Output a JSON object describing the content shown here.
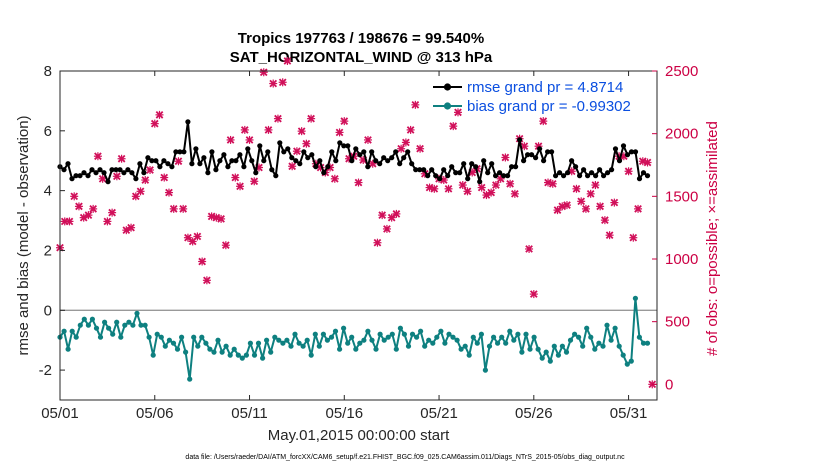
{
  "chart_data": {
    "type": "line",
    "title_line1": "Tropics 197763 / 198676 = 99.540%",
    "title_line2": "SAT_HORIZONTAL_WIND @ 313 hPa",
    "xlabel": "May.01,2015 00:00:00 start",
    "ylabel_left": "rmse and bias (model - observation)",
    "ylabel_right": "# of obs: o=possible; ×=assimilated",
    "ylim_left": [
      -3,
      8
    ],
    "yticks_left": [
      "-2",
      "0",
      "2",
      "4",
      "6",
      "8"
    ],
    "ylim_right": [
      -125,
      2500
    ],
    "yticks_right": [
      "0",
      "500",
      "1000",
      "1500",
      "2000",
      "2500"
    ],
    "xlim": [
      0,
      31.5
    ],
    "xticks": [
      {
        "day": 0,
        "label": "05/01"
      },
      {
        "day": 5,
        "label": "05/06"
      },
      {
        "day": 10,
        "label": "05/11"
      },
      {
        "day": 15,
        "label": "05/16"
      },
      {
        "day": 20,
        "label": "05/21"
      },
      {
        "day": 25,
        "label": "05/26"
      },
      {
        "day": 30,
        "label": "05/31"
      }
    ],
    "series": [
      {
        "name": "rmse grand pr = 4.8714",
        "color": "#000000",
        "values": [
          4.8,
          4.7,
          4.9,
          4.4,
          4.5,
          4.5,
          4.6,
          4.5,
          4.7,
          4.6,
          4.7,
          4.6,
          4.3,
          4.7,
          4.7,
          4.7,
          4.6,
          4.7,
          4.6,
          4.4,
          4.9,
          4.6,
          5.1,
          5.0,
          5.0,
          4.8,
          5.0,
          4.9,
          4.8,
          5.3,
          5.3,
          5.3,
          6.3,
          4.9,
          5.4,
          4.9,
          5.1,
          4.6,
          5.3,
          4.7,
          5.0,
          5.2,
          4.8,
          5.0,
          5.0,
          5.2,
          4.8,
          5.4,
          5.0,
          4.6,
          5.5,
          5.0,
          5.3,
          4.7,
          4.5,
          5.6,
          5.3,
          5.4,
          5.1,
          5.0,
          4.9,
          5.3,
          5.1,
          5.2,
          4.8,
          5.0,
          4.6,
          4.8,
          5.3,
          5.0,
          5.6,
          5.5,
          5.5,
          5.0,
          5.4,
          5.2,
          5.3,
          4.8,
          5.3,
          5.0,
          4.9,
          5.1,
          5.0,
          5.1,
          5.3,
          4.9,
          5.1,
          5.3,
          4.9,
          4.7,
          4.7,
          4.7,
          4.5,
          4.7,
          4.5,
          4.4,
          4.7,
          4.5,
          4.8,
          4.6,
          4.6,
          4.9,
          4.4,
          4.9,
          4.8,
          4.3,
          5.0,
          4.6,
          4.9,
          4.5,
          4.6,
          4.5,
          4.5,
          4.8,
          4.8,
          5.7,
          5.0,
          5.2,
          5.2,
          5.1,
          5.4,
          5.0,
          5.3,
          5.3,
          4.5,
          4.6,
          4.5,
          4.6,
          5.0,
          4.8,
          4.5,
          4.7,
          4.5,
          4.6,
          4.5,
          4.7,
          4.5,
          4.6,
          4.7,
          5.4,
          5.0,
          5.5,
          5.2,
          5.3,
          5.3,
          4.4,
          4.6,
          4.5
        ]
      },
      {
        "name": "bias grand pr = -0.99302",
        "color": "#0e8080",
        "values": [
          -0.9,
          -0.7,
          -1.3,
          -0.7,
          -0.9,
          -0.5,
          -0.3,
          -0.5,
          -0.3,
          -0.6,
          -0.9,
          -0.4,
          -0.6,
          -0.8,
          -0.4,
          -0.9,
          -0.5,
          -0.4,
          -0.5,
          -0.1,
          -0.5,
          -0.5,
          -0.9,
          -1.5,
          -0.8,
          -0.9,
          -1.2,
          -1.0,
          -1.1,
          -1.3,
          -0.9,
          -1.4,
          -2.3,
          -0.9,
          -1.2,
          -0.9,
          -1.1,
          -1.3,
          -1.4,
          -1.0,
          -1.4,
          -1.2,
          -1.5,
          -1.3,
          -1.5,
          -1.6,
          -1.5,
          -1.1,
          -1.5,
          -1.1,
          -1.6,
          -1.0,
          -1.4,
          -0.9,
          -1.0,
          -1.1,
          -1.0,
          -1.2,
          -0.8,
          -1.1,
          -1.2,
          -1.0,
          -1.5,
          -0.8,
          -1.2,
          -0.8,
          -1.0,
          -0.9,
          -0.7,
          -1.3,
          -0.6,
          -1.1,
          -0.9,
          -1.3,
          -1.1,
          -1.0,
          -0.7,
          -1.0,
          -1.3,
          -0.8,
          -1.0,
          -0.9,
          -0.8,
          -1.3,
          -0.6,
          -0.8,
          -1.2,
          -0.8,
          -0.9,
          -0.7,
          -1.2,
          -1.0,
          -1.1,
          -0.9,
          -0.7,
          -1.1,
          -0.8,
          -0.9,
          -1.0,
          -1.3,
          -1.2,
          -1.5,
          -0.9,
          -1.1,
          -0.8,
          -2.0,
          -1.2,
          -0.9,
          -1.1,
          -0.9,
          -1.1,
          -0.7,
          -1.0,
          -0.8,
          -1.4,
          -0.8,
          -1.3,
          -0.9,
          -1.3,
          -1.6,
          -1.4,
          -1.7,
          -1.2,
          -1.5,
          -1.2,
          -1.4,
          -1.0,
          -0.8,
          -0.9,
          -1.2,
          -0.6,
          -0.9,
          -1.3,
          -1.1,
          -1.2,
          -0.5,
          -1.0,
          -0.6,
          -1.2,
          -1.5,
          -1.8,
          -1.7,
          0.4,
          -0.9,
          -1.1,
          -1.1
        ]
      }
    ],
    "obs_assimilated": {
      "name": "# assimilated (×)",
      "color": "#d1105a",
      "points": [
        [
          0.0,
          1090
        ],
        [
          0.25,
          1300
        ],
        [
          0.5,
          1300
        ],
        [
          0.75,
          1500
        ],
        [
          1.0,
          1420
        ],
        [
          1.25,
          1330
        ],
        [
          1.5,
          1350
        ],
        [
          1.75,
          1400
        ],
        [
          2.0,
          1820
        ],
        [
          2.25,
          1640
        ],
        [
          2.5,
          1300
        ],
        [
          2.75,
          1370
        ],
        [
          3.0,
          1660
        ],
        [
          3.25,
          1800
        ],
        [
          3.5,
          1230
        ],
        [
          3.75,
          1250
        ],
        [
          4.0,
          1500
        ],
        [
          4.25,
          1540
        ],
        [
          4.5,
          1630
        ],
        [
          4.75,
          1710
        ],
        [
          5.0,
          2080
        ],
        [
          5.25,
          2150
        ],
        [
          5.5,
          1650
        ],
        [
          5.75,
          1530
        ],
        [
          6.0,
          1400
        ],
        [
          6.25,
          1780
        ],
        [
          6.5,
          1400
        ],
        [
          6.75,
          1170
        ],
        [
          7.0,
          1140
        ],
        [
          7.25,
          1180
        ],
        [
          7.5,
          980
        ],
        [
          7.75,
          830
        ],
        [
          8.0,
          1340
        ],
        [
          8.25,
          1330
        ],
        [
          8.5,
          1320
        ],
        [
          8.75,
          1110
        ],
        [
          9.0,
          1950
        ],
        [
          9.25,
          1650
        ],
        [
          9.5,
          1580
        ],
        [
          9.75,
          2030
        ],
        [
          10.0,
          1950
        ],
        [
          10.25,
          1620
        ],
        [
          10.5,
          1730
        ],
        [
          10.75,
          2490
        ],
        [
          11.0,
          2030
        ],
        [
          11.25,
          2400
        ],
        [
          11.5,
          2120
        ],
        [
          11.75,
          2410
        ],
        [
          12.0,
          2580
        ],
        [
          12.25,
          1740
        ],
        [
          12.5,
          1860
        ],
        [
          12.75,
          2020
        ],
        [
          13.0,
          1920
        ],
        [
          13.25,
          2120
        ],
        [
          13.5,
          1760
        ],
        [
          13.75,
          1730
        ],
        [
          14.0,
          1690
        ],
        [
          14.25,
          1730
        ],
        [
          14.5,
          1640
        ],
        [
          14.75,
          2010
        ],
        [
          15.0,
          2100
        ],
        [
          15.25,
          1800
        ],
        [
          15.5,
          1820
        ],
        [
          15.75,
          1610
        ],
        [
          16.0,
          1790
        ],
        [
          16.25,
          1950
        ],
        [
          16.5,
          1760
        ],
        [
          16.75,
          1130
        ],
        [
          17.0,
          1350
        ],
        [
          17.25,
          1240
        ],
        [
          17.5,
          1330
        ],
        [
          17.75,
          1360
        ],
        [
          18.0,
          1880
        ],
        [
          18.25,
          1930
        ],
        [
          18.5,
          2030
        ],
        [
          18.75,
          2230
        ],
        [
          19.0,
          1880
        ],
        [
          19.25,
          1680
        ],
        [
          19.5,
          1570
        ],
        [
          19.75,
          1560
        ],
        [
          20.0,
          1640
        ],
        [
          20.25,
          1630
        ],
        [
          20.5,
          1560
        ],
        [
          20.75,
          2060
        ],
        [
          21.0,
          2170
        ],
        [
          21.25,
          1590
        ],
        [
          21.5,
          1540
        ],
        [
          21.75,
          1690
        ],
        [
          22.0,
          1720
        ],
        [
          22.25,
          1570
        ],
        [
          22.5,
          1510
        ],
        [
          22.75,
          1530
        ],
        [
          23.0,
          1590
        ],
        [
          23.25,
          1640
        ],
        [
          23.5,
          1810
        ],
        [
          23.75,
          1600
        ],
        [
          24.0,
          1520
        ],
        [
          24.25,
          1960
        ],
        [
          24.5,
          1900
        ],
        [
          24.75,
          1080
        ],
        [
          25.0,
          720
        ],
        [
          25.25,
          1900
        ],
        [
          25.5,
          2100
        ],
        [
          25.75,
          1610
        ],
        [
          26.0,
          1600
        ],
        [
          26.25,
          1390
        ],
        [
          26.5,
          1420
        ],
        [
          26.75,
          1430
        ],
        [
          27.0,
          1700
        ],
        [
          27.25,
          1560
        ],
        [
          27.5,
          1460
        ],
        [
          27.75,
          1400
        ],
        [
          28.0,
          1520
        ],
        [
          28.25,
          1590
        ],
        [
          28.5,
          1420
        ],
        [
          28.75,
          1310
        ],
        [
          29.0,
          1190
        ],
        [
          29.25,
          1450
        ],
        [
          29.5,
          1820
        ],
        [
          29.75,
          1820
        ],
        [
          30.0,
          1700
        ],
        [
          30.25,
          1170
        ],
        [
          30.5,
          1400
        ],
        [
          30.75,
          1780
        ],
        [
          31.0,
          1770
        ],
        [
          31.25,
          0
        ]
      ]
    },
    "reference_line": {
      "y": 0,
      "color": "#999999"
    },
    "footnote": "data file: /Users/raeder/DAI/ATM_forcXX/CAM6_setup/f.e21.FHIST_BGC.f09_025.CAM6assim.011/Diags_NTrS_2015-05/obs_diag_output.nc",
    "legend_position": "top-right"
  }
}
